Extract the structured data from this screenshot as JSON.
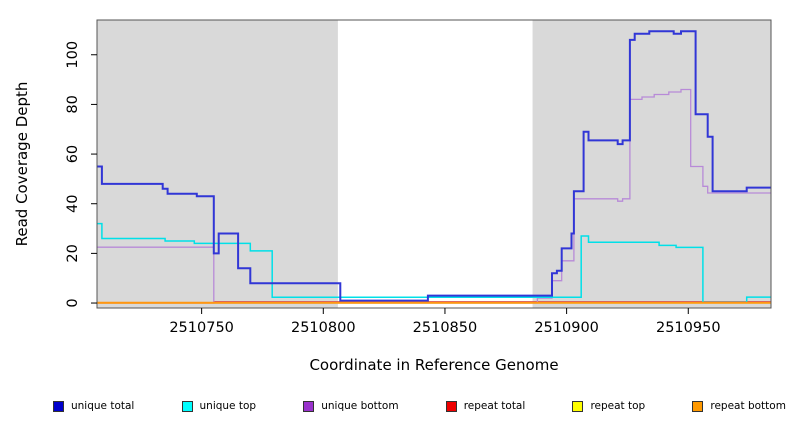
{
  "chart_data": {
    "type": "line",
    "title": "",
    "xlabel": "Coordinate in Reference Genome",
    "ylabel": "Read Coverage Depth",
    "xlim": [
      2510707,
      2510984
    ],
    "ylim": [
      -2,
      114
    ],
    "x_ticks": [
      2510750,
      2510800,
      2510850,
      2510900,
      2510950
    ],
    "y_ticks": [
      0,
      20,
      40,
      60,
      80,
      100
    ],
    "grid": false,
    "step_style": "post",
    "legend_position": "bottom",
    "background_color": "#ffffff",
    "shading_color": "#d9d9d9",
    "shaded_regions": [
      {
        "from": 2510707,
        "to": 2510806
      },
      {
        "from": 2510886,
        "to": 2510984
      }
    ],
    "series": [
      {
        "id": "repeat-top",
        "name": "repeat top",
        "color": "#ffff00",
        "width": 1.2,
        "points": [
          [
            2510707,
            0
          ],
          [
            2510984,
            0
          ]
        ]
      },
      {
        "id": "repeat-total",
        "name": "repeat total",
        "color": "#cc3b5e",
        "width": 1.3,
        "points": [
          [
            2510707,
            0
          ],
          [
            2510755,
            0.5
          ],
          [
            2510984,
            0.5
          ]
        ]
      },
      {
        "id": "unique-bottom",
        "name": "unique bottom",
        "color": "#b88ad8",
        "width": 1.3,
        "points": [
          [
            2510707,
            22.5
          ],
          [
            2510755,
            0
          ],
          [
            2510888,
            2
          ],
          [
            2510894,
            9
          ],
          [
            2510898,
            17
          ],
          [
            2510903,
            42
          ],
          [
            2510921,
            41
          ],
          [
            2510923,
            42
          ],
          [
            2510926,
            82
          ],
          [
            2510931,
            83
          ],
          [
            2510936,
            84
          ],
          [
            2510942,
            85
          ],
          [
            2510947,
            86
          ],
          [
            2510951,
            55
          ],
          [
            2510956,
            47
          ],
          [
            2510958,
            44.3
          ],
          [
            2510984,
            44.3
          ]
        ]
      },
      {
        "id": "unique-top",
        "name": "unique top",
        "color": "#00e0e8",
        "width": 1.5,
        "points": [
          [
            2510707,
            32
          ],
          [
            2510709,
            26
          ],
          [
            2510735,
            25
          ],
          [
            2510747,
            24
          ],
          [
            2510770,
            21
          ],
          [
            2510779,
            2.3
          ],
          [
            2510906,
            27
          ],
          [
            2510909,
            24.5
          ],
          [
            2510938,
            23.2
          ],
          [
            2510945,
            22.4
          ],
          [
            2510956,
            0.3
          ],
          [
            2510974,
            2.4
          ],
          [
            2510984,
            2.4
          ]
        ]
      },
      {
        "id": "unique-total",
        "name": "unique total",
        "color": "#3136d6",
        "width": 2,
        "points": [
          [
            2510707,
            55
          ],
          [
            2510709,
            48
          ],
          [
            2510734,
            46
          ],
          [
            2510736,
            44
          ],
          [
            2510748,
            43
          ],
          [
            2510755,
            20
          ],
          [
            2510757,
            28
          ],
          [
            2510765,
            14
          ],
          [
            2510770,
            8
          ],
          [
            2510807,
            1
          ],
          [
            2510843,
            3
          ],
          [
            2510894,
            12
          ],
          [
            2510896,
            13
          ],
          [
            2510898,
            22
          ],
          [
            2510902,
            28
          ],
          [
            2510903,
            45
          ],
          [
            2510907,
            69
          ],
          [
            2510909,
            65.5
          ],
          [
            2510921,
            64
          ],
          [
            2510923,
            65.5
          ],
          [
            2510926,
            106
          ],
          [
            2510928,
            108.5
          ],
          [
            2510934,
            109.5
          ],
          [
            2510944,
            108.5
          ],
          [
            2510947,
            109.5
          ],
          [
            2510953,
            76
          ],
          [
            2510958,
            67
          ],
          [
            2510960,
            45
          ],
          [
            2510974,
            46.5
          ],
          [
            2510984,
            46.5
          ]
        ]
      },
      {
        "id": "repeat-bottom",
        "name": "repeat bottom",
        "color": "#ff9712",
        "width": 2,
        "points": [
          [
            2510707,
            0.15
          ],
          [
            2510984,
            0.15
          ]
        ]
      }
    ]
  },
  "legend": {
    "items": [
      {
        "id": "unique-total",
        "label": "unique total",
        "color": "#0000cc"
      },
      {
        "id": "unique-top",
        "label": "unique top",
        "color": "#00ffff"
      },
      {
        "id": "unique-bottom",
        "label": "unique bottom",
        "color": "#9932cc"
      },
      {
        "id": "repeat-total",
        "label": "repeat total",
        "color": "#ee0000"
      },
      {
        "id": "repeat-top",
        "label": "repeat top",
        "color": "#ffff00"
      },
      {
        "id": "repeat-bottom",
        "label": "repeat bottom",
        "color": "#ff9900"
      }
    ]
  }
}
